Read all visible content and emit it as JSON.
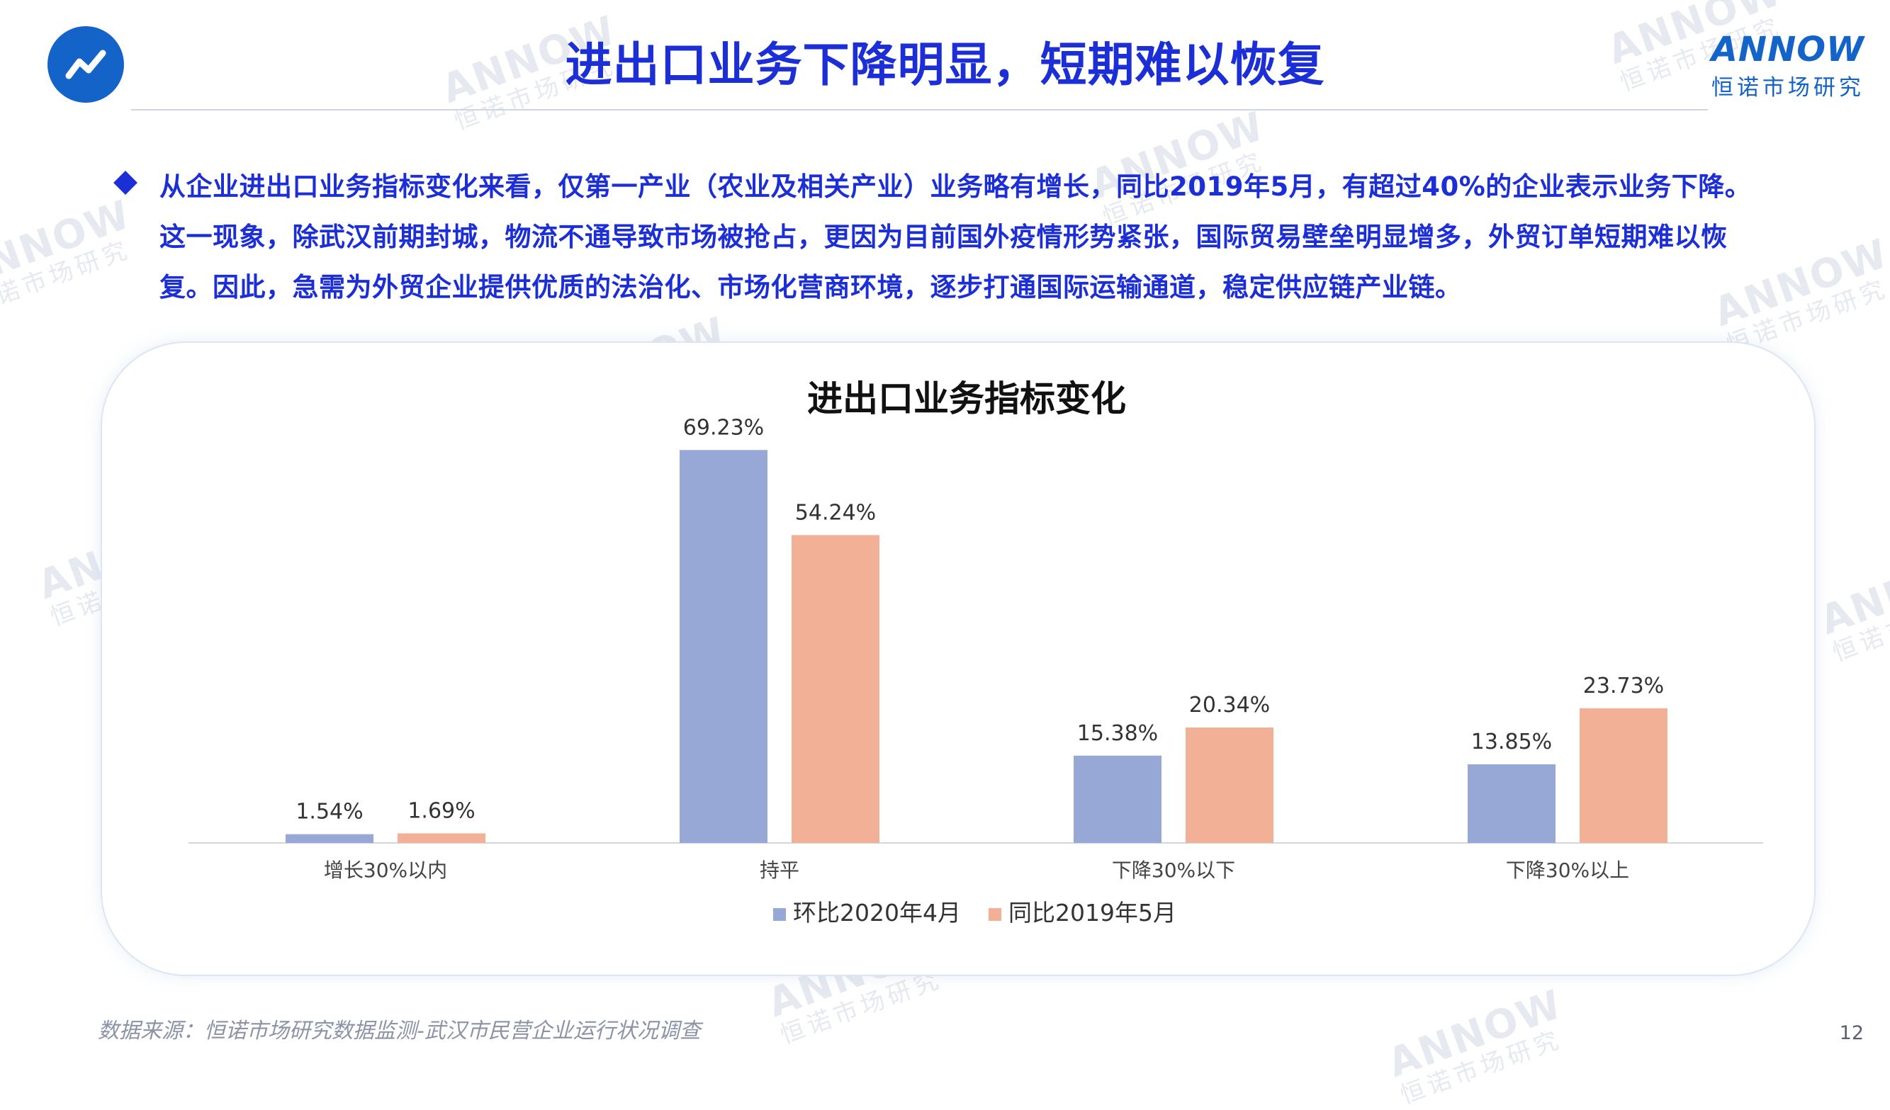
{
  "header": {
    "title": "进出口业务下降明显，短期难以恢复",
    "brand_name": "ANNOW",
    "brand_sub": "恒诺市场研究",
    "logo_icon": "trend-line-icon"
  },
  "summary": {
    "bullet_icon": "diamond-bullet-icon",
    "text": "从企业进出口业务指标变化来看，仅第一产业（农业及相关产业）业务略有增长，同比2019年5月，有超过40%的企业表示业务下降。这一现象，除武汉前期封城，物流不通导致市场被抢占，更因为目前国外疫情形势紧张，国际贸易壁垒明显增多，外贸订单短期难以恢复。因此，急需为外贸企业提供优质的法治化、市场化营商环境，逐步打通国际运输通道，稳定供应链产业链。"
  },
  "chart_data": {
    "type": "bar",
    "title": "进出口业务指标变化",
    "categories": [
      "增长30%以内",
      "持平",
      "下降30%以下",
      "下降30%以上"
    ],
    "series": [
      {
        "name": "环比2020年4月",
        "values": [
          1.54,
          69.23,
          15.38,
          13.85
        ],
        "labels": [
          "1.54%",
          "69.23%",
          "15.38%",
          "13.85%"
        ],
        "color": "#97a7d6"
      },
      {
        "name": "同比2019年5月",
        "values": [
          1.69,
          54.24,
          20.34,
          23.73
        ],
        "labels": [
          "1.69%",
          "54.24%",
          "20.34%",
          "23.73%"
        ],
        "color": "#f2b196"
      }
    ],
    "ylim": [
      0,
      80
    ],
    "grid": false,
    "legend_position": "bottom"
  },
  "footer": {
    "source": "数据来源：恒诺市场研究数据监测-武汉市民营企业运行状况调查",
    "page_number": "12"
  },
  "watermark": {
    "brand": "ANNOW",
    "sub": "恒诺市场研究"
  }
}
